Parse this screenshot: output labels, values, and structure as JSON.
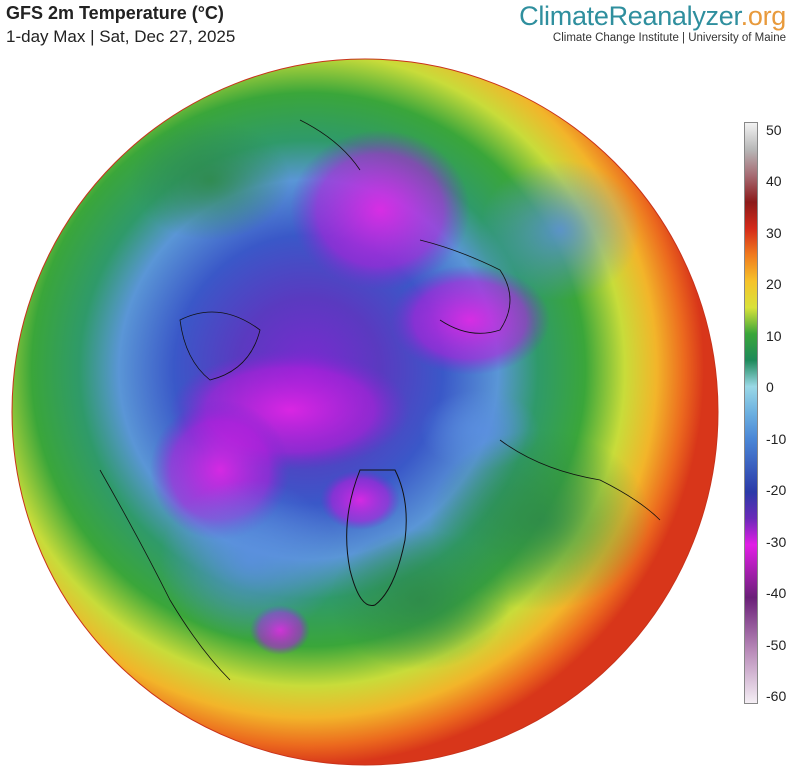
{
  "header": {
    "title": "GFS 2m Temperature (°C)",
    "subtitle": "1-day Max | Sat, Dec 27, 2025"
  },
  "brand": {
    "part1": "Climate",
    "part2": "Reanalyzer",
    "part3": ".org",
    "subtitle": "Climate Change Institute | University of Maine",
    "colors": {
      "primary": "#2f8f9e",
      "accent": "#e89a3c"
    }
  },
  "legend": {
    "ticks": [
      "50",
      "40",
      "30",
      "20",
      "10",
      "0",
      "-10",
      "-20",
      "-30",
      "-40",
      "-50",
      "-60"
    ],
    "stops": [
      {
        "value": 50,
        "color": "#f2f2f2"
      },
      {
        "value": 45,
        "color": "#b8b8b8"
      },
      {
        "value": 40,
        "color": "#a66a72"
      },
      {
        "value": 35,
        "color": "#8c1a1a"
      },
      {
        "value": 30,
        "color": "#d42a1a"
      },
      {
        "value": 25,
        "color": "#f07a1e"
      },
      {
        "value": 20,
        "color": "#f6c22a"
      },
      {
        "value": 15,
        "color": "#d9e23a"
      },
      {
        "value": 10,
        "color": "#3aa63a"
      },
      {
        "value": 5,
        "color": "#1e8a5a"
      },
      {
        "value": 0,
        "color": "#9ad8e6"
      },
      {
        "value": -5,
        "color": "#6cb0e0"
      },
      {
        "value": -10,
        "color": "#4a86d6"
      },
      {
        "value": -20,
        "color": "#2b3aa8"
      },
      {
        "value": -25,
        "color": "#6a2ab8"
      },
      {
        "value": -30,
        "color": "#e21ee6"
      },
      {
        "value": -40,
        "color": "#6a1f78"
      },
      {
        "value": -50,
        "color": "#b88ab8"
      },
      {
        "value": -60,
        "color": "#f4eef4"
      }
    ]
  }
}
